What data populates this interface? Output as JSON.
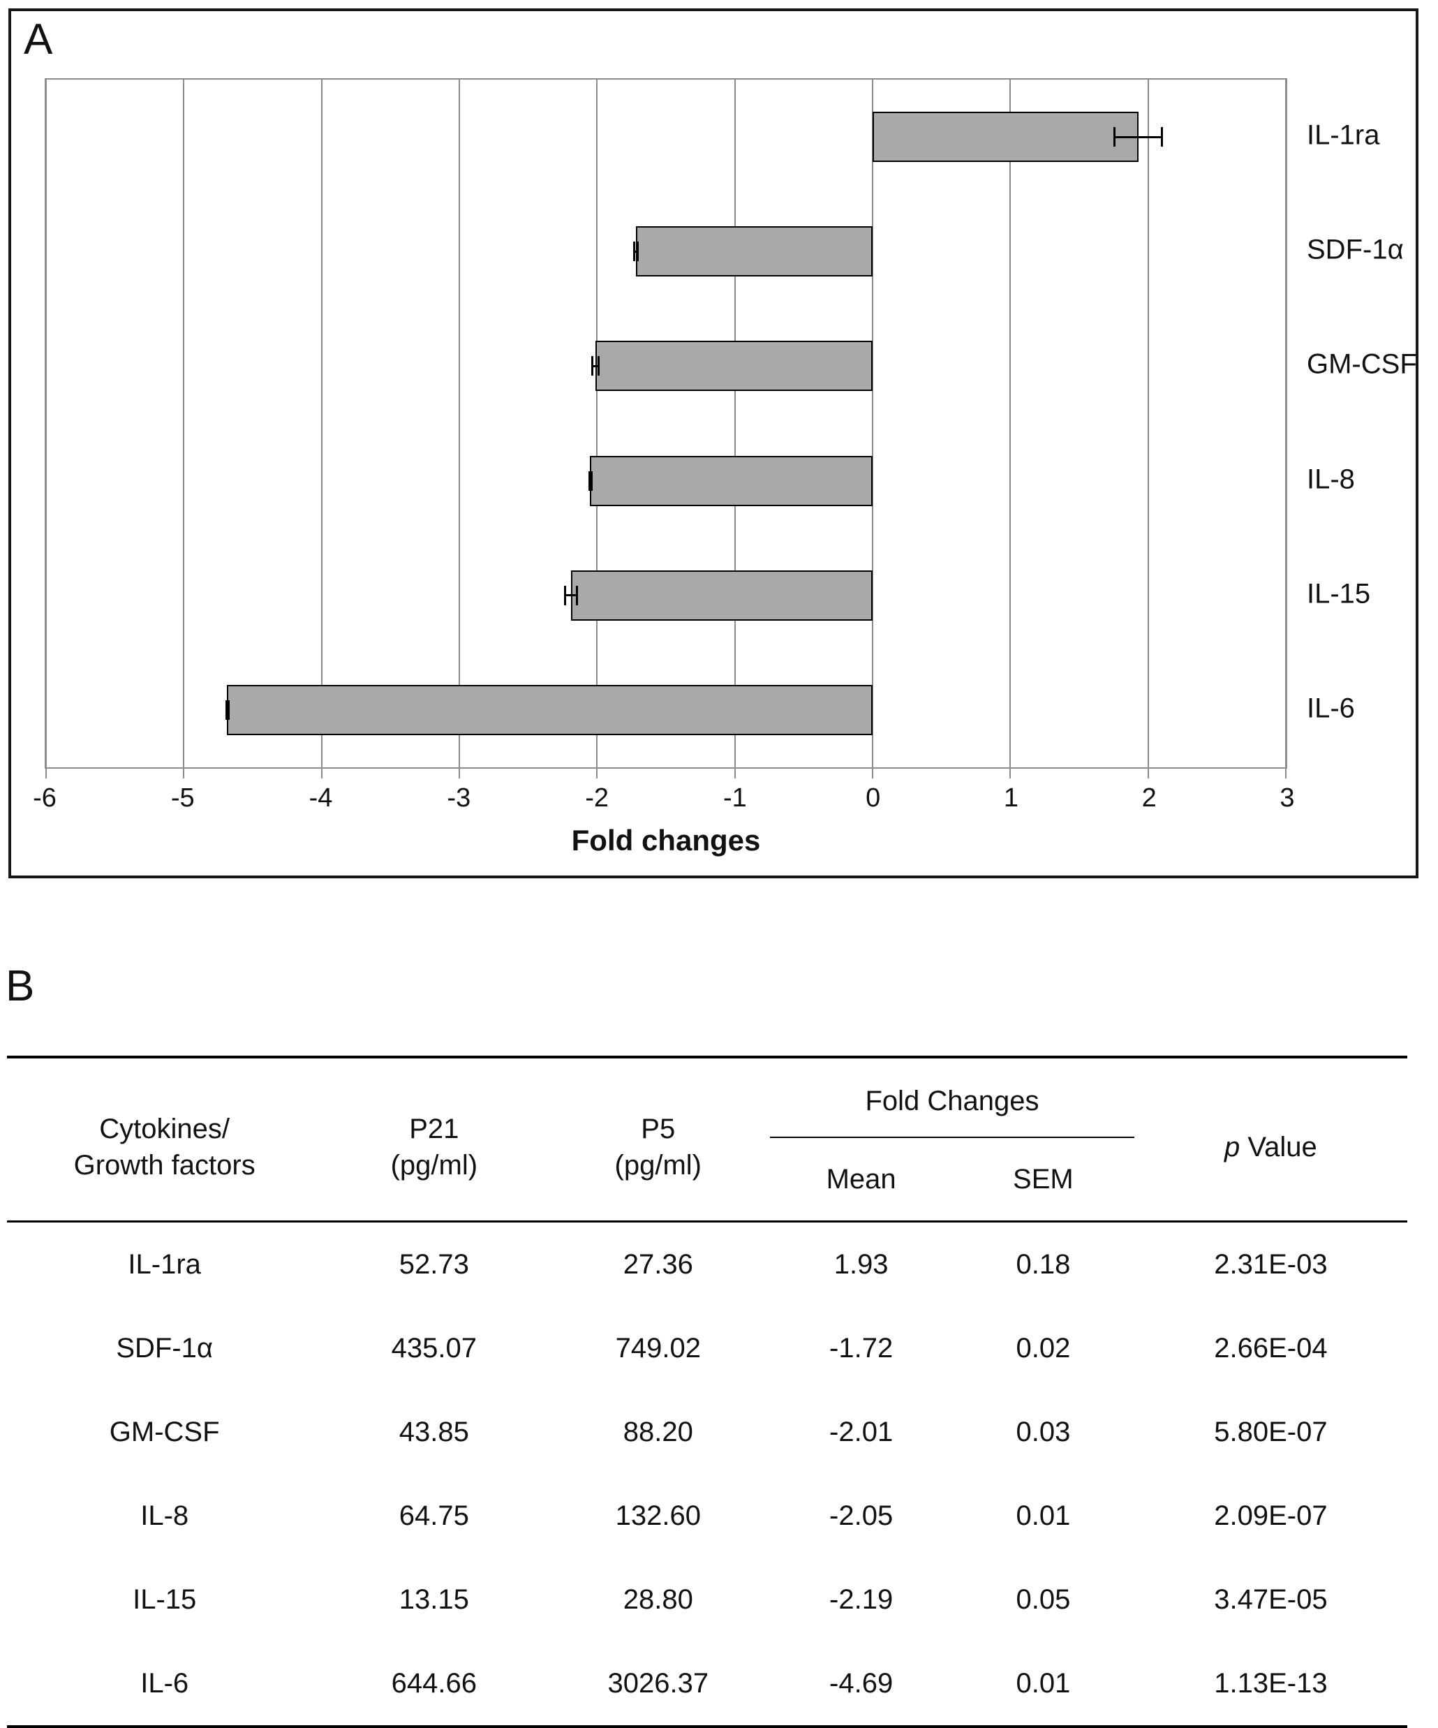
{
  "chart_data": {
    "type": "bar",
    "orientation": "horizontal",
    "title": "",
    "xlabel": "Fold changes",
    "ylabel": "",
    "xlim": [
      -6,
      3
    ],
    "xticks": [
      -6,
      -5,
      -4,
      -3,
      -2,
      -1,
      0,
      1,
      2,
      3
    ],
    "grid": true,
    "legend": false,
    "categories": [
      "IL-1ra",
      "SDF-1α",
      "GM-CSF",
      "IL-8",
      "IL-15",
      "IL-6"
    ],
    "values": [
      1.93,
      -1.72,
      -2.01,
      -2.05,
      -2.19,
      -4.69
    ],
    "errors": [
      0.18,
      0.02,
      0.03,
      0.01,
      0.05,
      0.01
    ],
    "bar_color": "#a9a9a9",
    "bar_border": "#000000",
    "grid_color": "#8c8c8c"
  },
  "panel_a": {
    "label": "A"
  },
  "panel_b": {
    "label": "B",
    "table": {
      "header": {
        "col1": "Cytokines/\nGrowth factors",
        "col2": "P21\n(pg/ml)",
        "col3": "P5\n(pg/ml)",
        "fold_changes": "Fold Changes",
        "mean": "Mean",
        "sem": "SEM",
        "p_italic": "p",
        "p_rest": " Value"
      },
      "rows": [
        {
          "name": "IL-1ra",
          "p21": "52.73",
          "p5": "27.36",
          "mean": "1.93",
          "sem": "0.18",
          "p": "2.31E-03"
        },
        {
          "name": "SDF-1α",
          "p21": "435.07",
          "p5": "749.02",
          "mean": "-1.72",
          "sem": "0.02",
          "p": "2.66E-04"
        },
        {
          "name": "GM-CSF",
          "p21": "43.85",
          "p5": "88.20",
          "mean": "-2.01",
          "sem": "0.03",
          "p": "5.80E-07"
        },
        {
          "name": "IL-8",
          "p21": "64.75",
          "p5": "132.60",
          "mean": "-2.05",
          "sem": "0.01",
          "p": "2.09E-07"
        },
        {
          "name": "IL-15",
          "p21": "13.15",
          "p5": "28.80",
          "mean": "-2.19",
          "sem": "0.05",
          "p": "3.47E-05"
        },
        {
          "name": "IL-6",
          "p21": "644.66",
          "p5": "3026.37",
          "mean": "-4.69",
          "sem": "0.01",
          "p": "1.13E-13"
        }
      ]
    }
  }
}
